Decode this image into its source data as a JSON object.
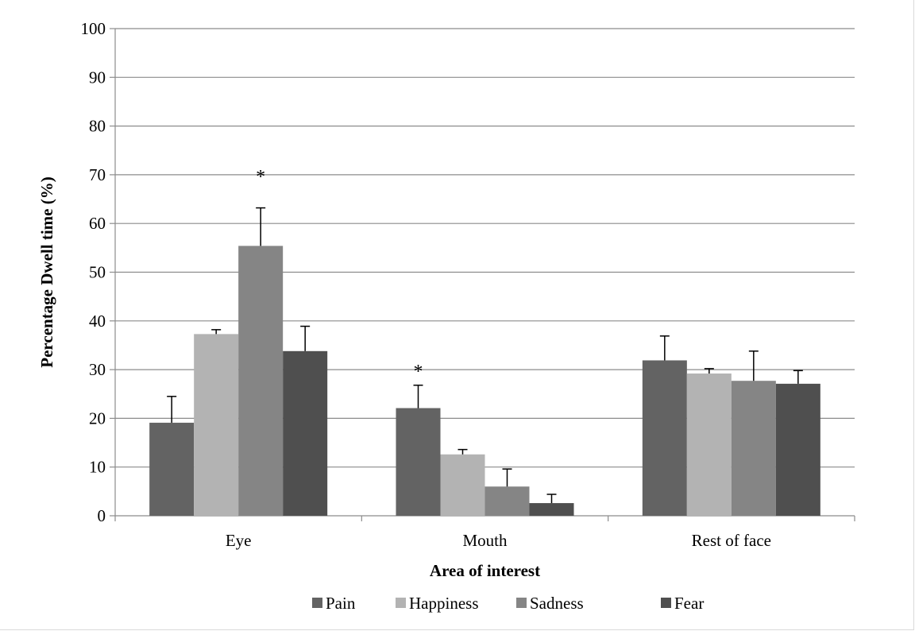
{
  "chart_data": {
    "type": "bar",
    "title": "",
    "xlabel": "Area of interest",
    "ylabel": "Percentage Dwell time (%)",
    "ylim": [
      0,
      100
    ],
    "yticks": [
      0,
      10,
      20,
      30,
      40,
      50,
      60,
      70,
      80,
      90,
      100
    ],
    "grid": true,
    "legend_position": "bottom",
    "categories": [
      "Eye",
      "Mouth",
      "Rest of face"
    ],
    "series": [
      {
        "name": "Pain",
        "color": "#636363",
        "values": [
          19.1,
          22.1,
          31.9
        ],
        "errors": [
          5.4,
          4.7,
          5.0
        ]
      },
      {
        "name": "Happiness",
        "color": "#b3b3b3",
        "values": [
          37.3,
          12.6,
          29.2
        ],
        "errors": [
          0.9,
          1.0,
          1.0
        ]
      },
      {
        "name": "Sadness",
        "color": "#858585",
        "values": [
          55.4,
          6.0,
          27.7
        ],
        "errors": [
          7.8,
          3.6,
          6.1
        ]
      },
      {
        "name": "Fear",
        "color": "#4f4f4f",
        "values": [
          33.8,
          2.6,
          27.1
        ],
        "errors": [
          5.1,
          1.8,
          2.7
        ]
      }
    ],
    "annotations": [
      {
        "text": "*",
        "category": "Eye",
        "series": "Sadness",
        "value": 70
      },
      {
        "text": "*",
        "category": "Mouth",
        "series": "Pain",
        "value": 30
      }
    ]
  }
}
